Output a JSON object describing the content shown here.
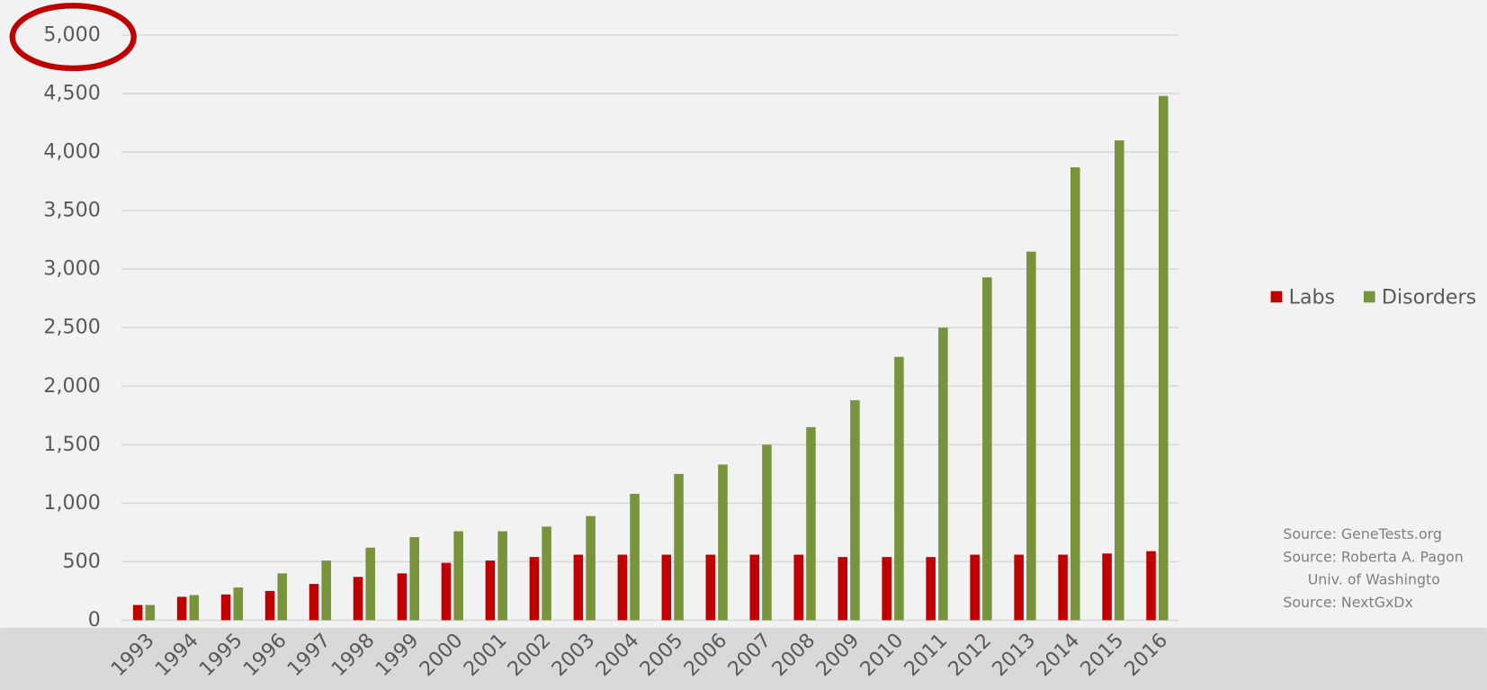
{
  "chart_data": {
    "type": "bar",
    "categories": [
      "1993",
      "1994",
      "1995",
      "1996",
      "1997",
      "1998",
      "1999",
      "2000",
      "2001",
      "2002",
      "2003",
      "2004",
      "2005",
      "2006",
      "2007",
      "2008",
      "2009",
      "2010",
      "2011",
      "2012",
      "2013",
      "2014",
      "2015",
      "2016"
    ],
    "series": [
      {
        "name": "Labs",
        "color": "#c00000",
        "values": [
          130,
          200,
          220,
          250,
          310,
          370,
          400,
          490,
          510,
          540,
          560,
          560,
          560,
          560,
          560,
          560,
          540,
          540,
          540,
          560,
          560,
          560,
          570,
          590
        ]
      },
      {
        "name": "Disorders",
        "color": "#77933c",
        "values": [
          130,
          215,
          280,
          400,
          510,
          620,
          710,
          760,
          760,
          800,
          890,
          1080,
          1250,
          1330,
          1500,
          1650,
          1880,
          2250,
          2500,
          2930,
          3150,
          3870,
          4100,
          4480
        ]
      }
    ],
    "ylim": [
      0,
      5000
    ],
    "yticks": [
      0,
      500,
      {
        "value": 1000,
        "label": "1,000"
      },
      {
        "value": 1500,
        "label": "1,500"
      },
      {
        "value": 2000,
        "label": "2,000"
      },
      {
        "value": 2500,
        "label": "2,500"
      },
      {
        "value": 3000,
        "label": "3,000"
      },
      {
        "value": 3500,
        "label": "3,500"
      },
      {
        "value": 4000,
        "label": "4,000"
      },
      {
        "value": 4500,
        "label": "4,500"
      },
      {
        "value": 5000,
        "label": "5,000"
      }
    ],
    "grid": true,
    "legend": "right",
    "annotations": [
      "Source: GeneTests.org",
      "Source: Roberta A. Pagon",
      "Univ. of Washingto",
      "Source: NextGxDx"
    ]
  }
}
